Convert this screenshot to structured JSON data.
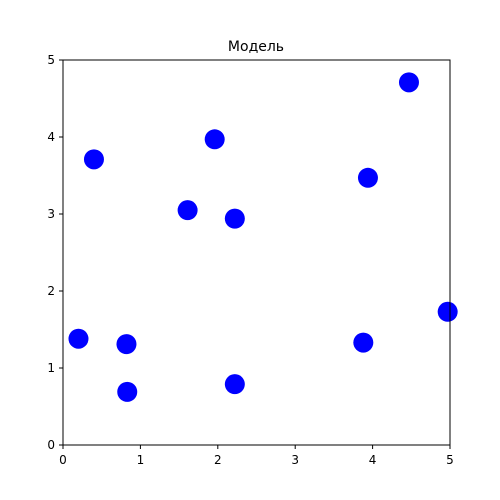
{
  "chart_data": {
    "type": "scatter",
    "title": "Модель",
    "xlabel": "",
    "ylabel": "",
    "xlim": [
      0,
      5
    ],
    "ylim": [
      0,
      5
    ],
    "xticks": [
      0,
      1,
      2,
      3,
      4,
      5
    ],
    "yticks": [
      0,
      1,
      2,
      3,
      4,
      5
    ],
    "grid": false,
    "marker_color": "#0000ff",
    "points": [
      {
        "x": 0.4,
        "y": 3.71
      },
      {
        "x": 1.96,
        "y": 3.97
      },
      {
        "x": 4.47,
        "y": 4.71
      },
      {
        "x": 3.94,
        "y": 3.47
      },
      {
        "x": 1.61,
        "y": 3.05
      },
      {
        "x": 2.22,
        "y": 2.94
      },
      {
        "x": 0.2,
        "y": 1.38
      },
      {
        "x": 0.82,
        "y": 1.31
      },
      {
        "x": 3.88,
        "y": 1.33
      },
      {
        "x": 4.97,
        "y": 1.73
      },
      {
        "x": 0.83,
        "y": 0.69
      },
      {
        "x": 2.22,
        "y": 0.79
      }
    ]
  }
}
